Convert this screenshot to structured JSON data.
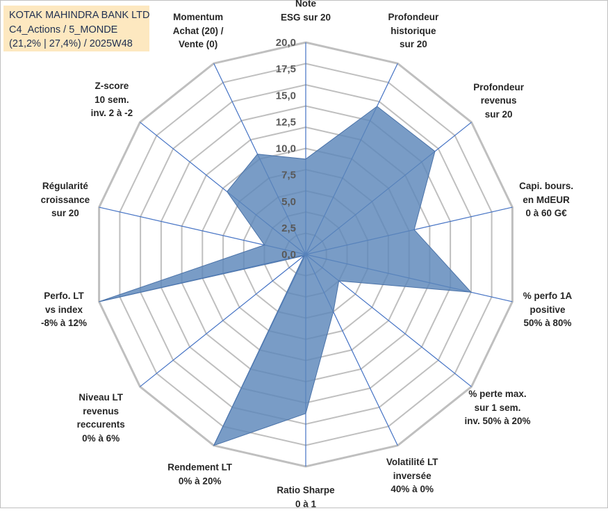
{
  "title_box": {
    "line1": "KOTAK MAHINDRA BANK LTD",
    "line2": "C4_Actions / 5_MONDE",
    "line3": "(21,2% | 27,4%) / 2025W48"
  },
  "chart_data": {
    "type": "radar",
    "rmin": 0,
    "rmax": 20,
    "tick_labels": [
      "0,0",
      "2,5",
      "5,0",
      "7,5",
      "10,0",
      "12,5",
      "15,0",
      "17,5",
      "20,0"
    ],
    "grid_rings": 10,
    "fill_color": "#5b86b9",
    "stroke_color": "#4a72a8",
    "axis_color": "#4472c4",
    "grid_color": "#bfbfbf",
    "axes": [
      {
        "label": "Note\nESG sur 20",
        "value": 9.0
      },
      {
        "label": "Profondeur\nhistorique\nsur 20",
        "value": 15.5
      },
      {
        "label": "Profondeur\nrevenus\nsur 20",
        "value": 15.6
      },
      {
        "label": "Capi. bours.\nen MdEUR\n0 à 60 G€",
        "value": 10.5
      },
      {
        "label": "% perfo 1A\npositive\n50% à 80%",
        "value": 16.0
      },
      {
        "label": "% perte max.\nsur 1 sem.\ninv. 50% à 20%",
        "value": 4.0
      },
      {
        "label": "Volatilité LT\ninversée\n40% à 0%",
        "value": 6.0
      },
      {
        "label": "Ratio Sharpe\n0 à 1",
        "value": 15.0
      },
      {
        "label": "Rendement LT\n0% à 20%",
        "value": 20.0
      },
      {
        "label": "Niveau LT\nrevenus\nreccurents\n0% à 6%",
        "value": 0.2
      },
      {
        "label": "Perfo. LT\nvs index\n-8% à 12%",
        "value": 20.0
      },
      {
        "label": "Régularité\ncroissance\nsur 20",
        "value": 4.0
      },
      {
        "label": "Z-score\n10 sem.\ninv. 2 à -2",
        "value": 9.5
      },
      {
        "label": "Momentum\nAchat (20) /\nVente (0)",
        "value": 10.5
      }
    ]
  }
}
